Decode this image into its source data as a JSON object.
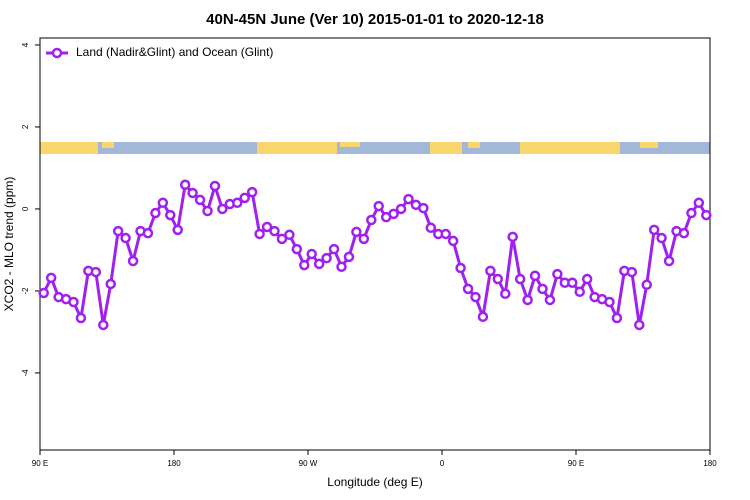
{
  "chart_data": {
    "type": "line",
    "title": "40N-45N June (Ver 10)   2015-01-01 to 2020-12-18",
    "x_label": "Longitude (deg E)",
    "y_label": "XCO2 - MLO trend (ppm)",
    "xlim": [
      90,
      540
    ],
    "ylim": [
      -5.88,
      4.17
    ],
    "xticks": [
      {
        "value": 90,
        "label": "90 E"
      },
      180,
      {
        "value": 270,
        "label": "90 W"
      },
      {
        "value": 360,
        "label": "0"
      },
      {
        "value": 450,
        "label": "90 E"
      },
      {
        "value": 540,
        "label": "180"
      }
    ],
    "yticks": [
      -4,
      -2,
      0,
      2,
      4
    ],
    "legend": "top-left",
    "x": [
      92.5,
      97.5,
      102.5,
      107.5,
      112.5,
      117.5,
      122.5,
      127.5,
      132.5,
      137.5,
      142.5,
      147.5,
      152.5,
      157.5,
      162.5,
      167.5,
      172.5,
      177.5,
      182.5,
      187.5,
      192.5,
      197.5,
      202.5,
      207.5,
      212.5,
      217.5,
      222.5,
      227.5,
      232.5,
      237.5,
      242.5,
      247.5,
      252.5,
      257.5,
      262.5,
      267.5,
      272.5,
      277.5,
      282.5,
      287.5,
      292.5,
      297.5,
      302.5,
      307.5,
      312.5,
      317.5,
      322.5,
      327.5,
      332.5,
      337.5,
      342.5,
      347.5,
      352.5,
      357.5,
      362.5,
      367.5,
      372.5,
      377.5,
      382.5,
      387.5,
      392.5,
      397.5,
      402.5,
      407.5,
      412.5,
      417.5,
      422.5,
      427.5,
      432.5,
      437.5,
      442.5,
      447.5,
      452.5,
      457.5,
      462.5,
      467.5,
      472.5,
      477.5,
      482.5,
      487.5,
      492.5,
      497.5,
      502.5,
      507.5,
      512.5,
      517.5,
      522.5,
      527.5,
      532.5,
      537.5
    ],
    "series": [
      {
        "name": "Land (Nadir&Glint) and Ocean (Glint)",
        "color": "#a020f0",
        "values": [
          -2.05,
          -1.68,
          -2.15,
          -2.2,
          -2.27,
          -2.66,
          -1.51,
          -1.54,
          -2.83,
          -1.83,
          -0.54,
          -0.71,
          -1.27,
          -0.54,
          -0.59,
          -0.1,
          0.15,
          -0.15,
          -0.51,
          0.59,
          0.39,
          0.22,
          -0.05,
          0.56,
          0,
          0.12,
          0.15,
          0.27,
          0.41,
          -0.61,
          -0.44,
          -0.54,
          -0.73,
          -0.63,
          -0.98,
          -1.37,
          -1.1,
          -1.34,
          -1.2,
          -0.98,
          -1.41,
          -1.17,
          -0.56,
          -0.73,
          -0.27,
          0.07,
          -0.2,
          -0.12,
          0,
          0.24,
          0.1,
          0.02,
          -0.46,
          -0.61,
          -0.61,
          -0.78,
          -1.44,
          -1.95,
          -2.15,
          -2.63,
          -1.51,
          -1.71,
          -2.07,
          -0.68,
          -1.71,
          -2.22,
          -1.63,
          -1.95,
          -2.22,
          -1.59,
          -1.8,
          -1.8,
          -2.02,
          -1.71,
          -2.15,
          -2.2,
          -2.27,
          -2.66,
          -1.51,
          -1.54,
          -2.83,
          -1.85,
          -0.51,
          -0.71,
          -1.27,
          -0.54,
          -0.59,
          -0.1,
          0.15,
          -0.15
        ]
      }
    ]
  }
}
